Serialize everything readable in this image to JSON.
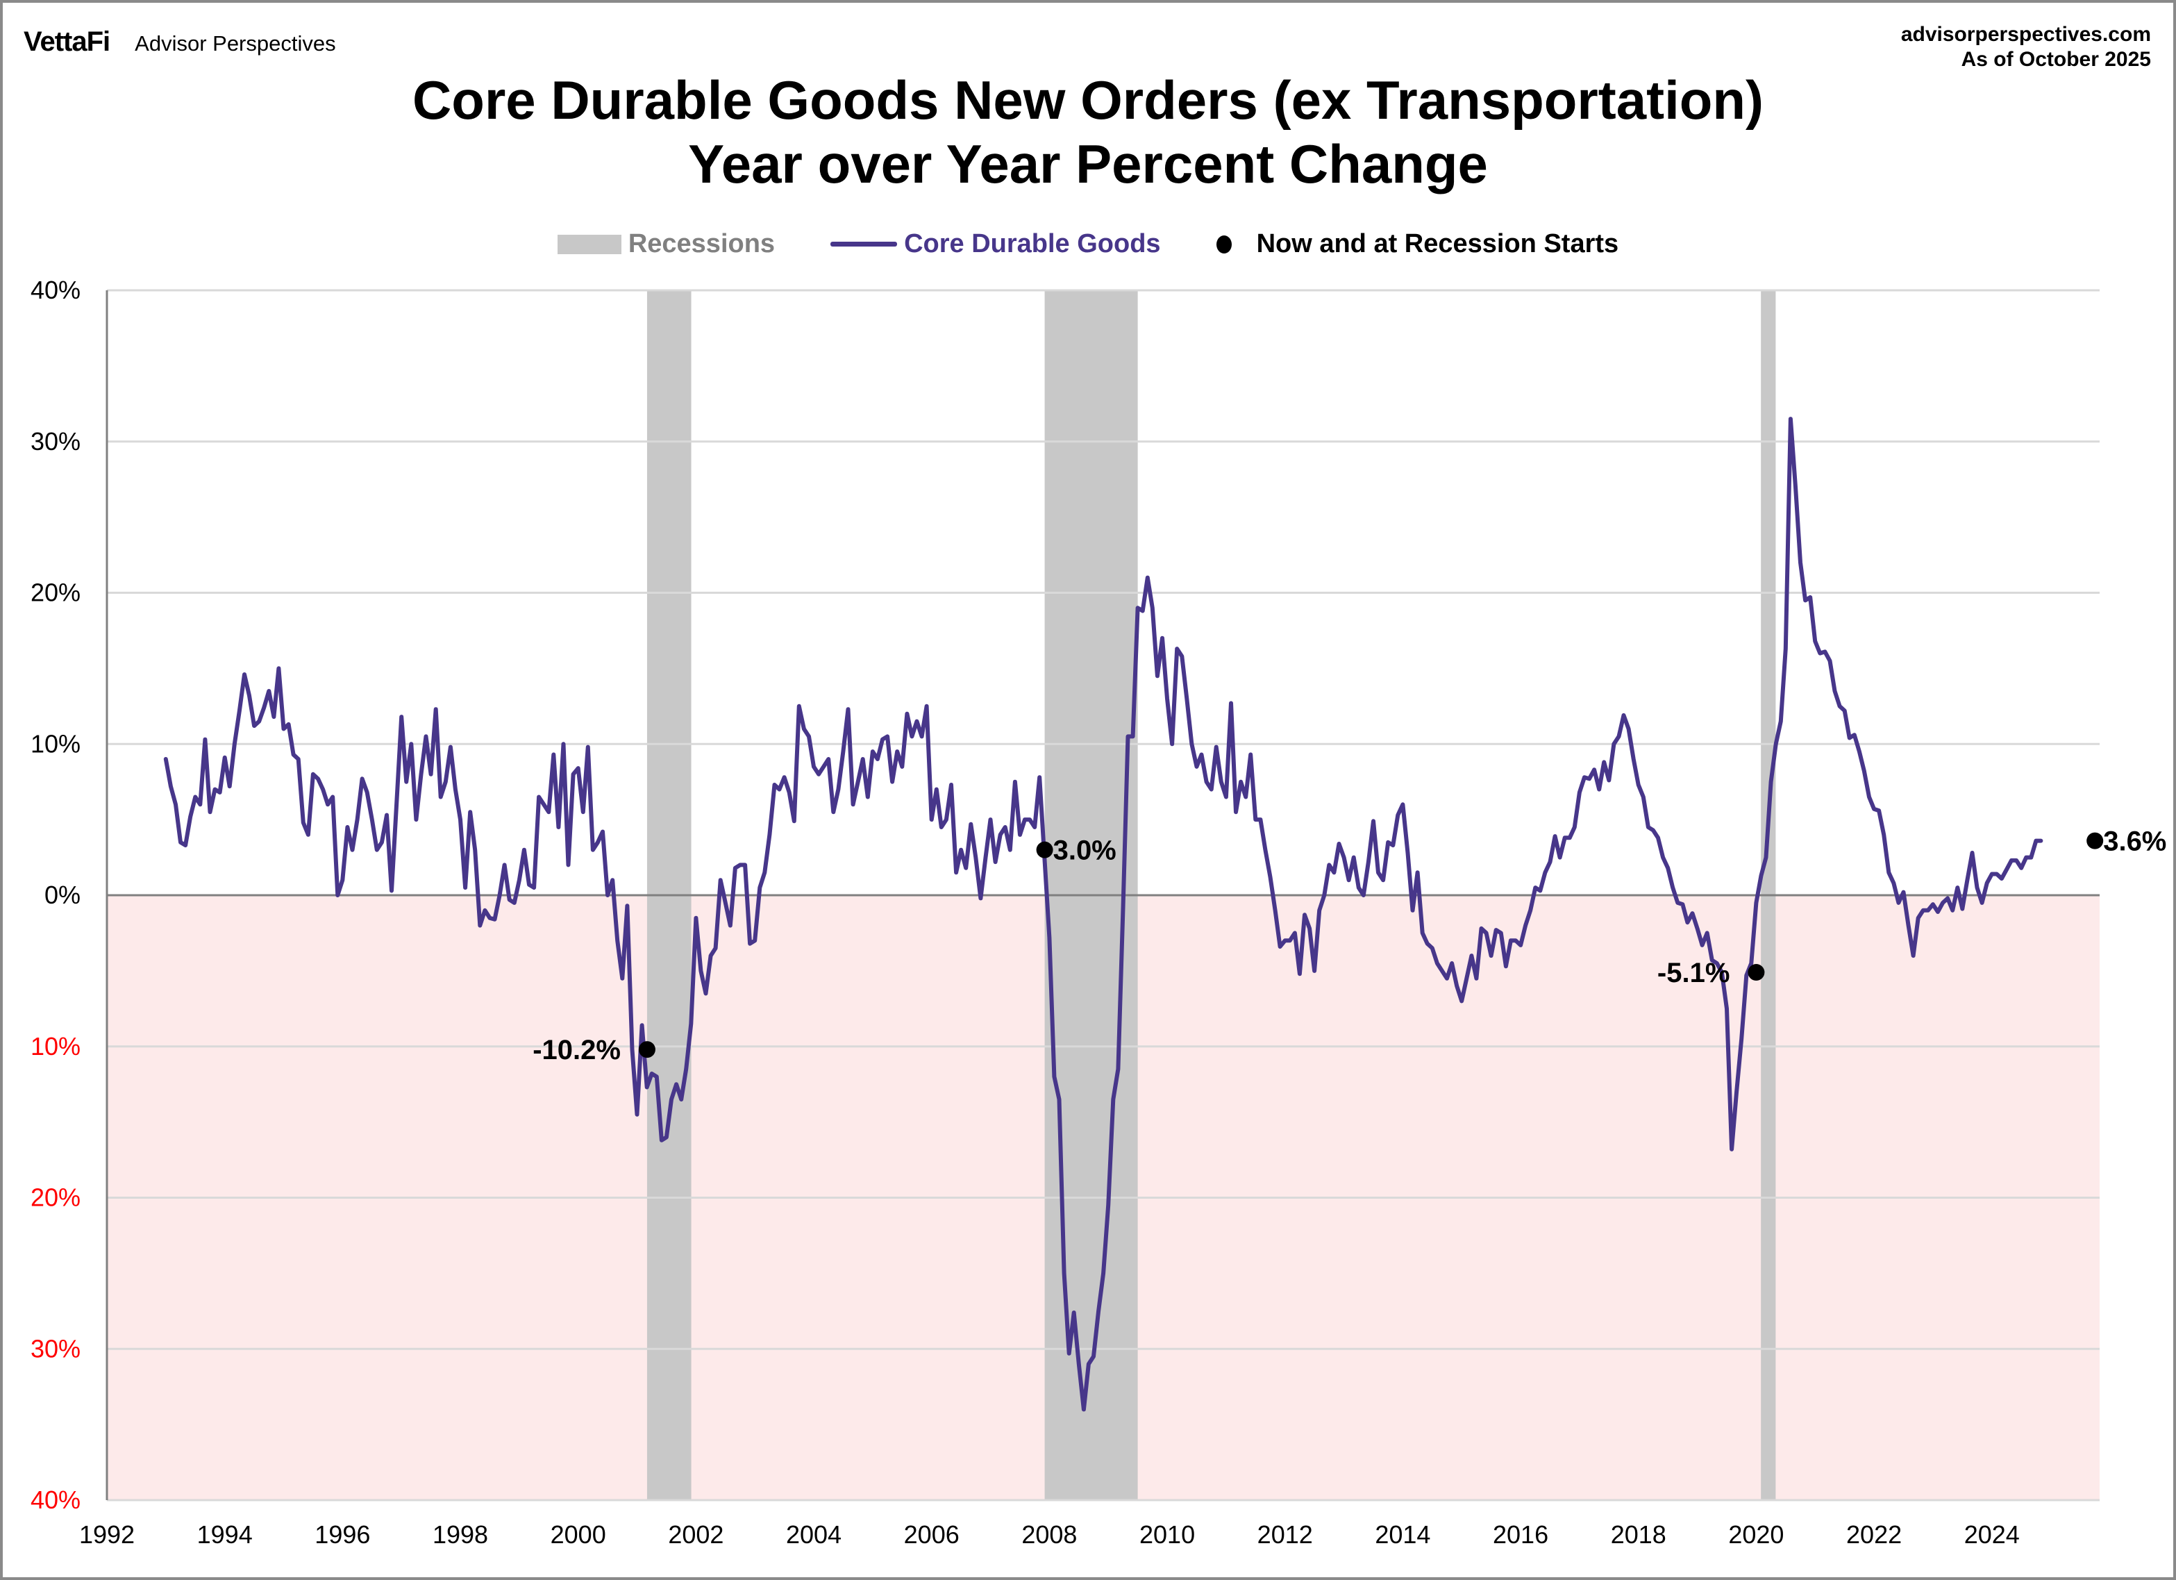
{
  "header": {
    "brand_logo": "VettaFi",
    "brand_name": "Advisor Perspectives",
    "source_site": "advisorperspectives.com",
    "as_of": "As of October 2025",
    "title_line1": "Core Durable Goods New Orders (ex Transportation)",
    "title_line2": "Year over Year Percent Change"
  },
  "legend": {
    "recessions": "Recessions",
    "series": "Core Durable Goods",
    "markers": "Now and at Recession Starts"
  },
  "colors": {
    "series": "#47368a",
    "recession": "#c8c8c8",
    "negative_fill": "#fdeaea",
    "negative_tick": "#ff0000",
    "grid": "#d9d9d9",
    "axis": "#808080",
    "legend_recessions_text": "#808080"
  },
  "chart_data": {
    "type": "line",
    "title": "Core Durable Goods New Orders (ex Transportation) Year over Year Percent Change",
    "xlabel": "",
    "ylabel": "",
    "xlim": [
      1992,
      2025.83
    ],
    "ylim": [
      -40,
      40
    ],
    "grid": true,
    "legend_position": "top-center",
    "x_tick_labels": [
      "1992",
      "1994",
      "1996",
      "1998",
      "2000",
      "2002",
      "2004",
      "2006",
      "2008",
      "2010",
      "2012",
      "2014",
      "2016",
      "2018",
      "2020",
      "2022",
      "2024"
    ],
    "y_tick_labels": [
      "40%",
      "30%",
      "20%",
      "10%",
      "0%",
      "10%",
      "20%",
      "30%",
      "40%"
    ],
    "y_tick_values": [
      40,
      30,
      20,
      10,
      0,
      -10,
      -20,
      -30,
      -40
    ],
    "recessions": [
      {
        "start": 2001.17,
        "end": 2001.92
      },
      {
        "start": 2007.92,
        "end": 2009.5
      },
      {
        "start": 2020.08,
        "end": 2020.33
      }
    ],
    "series": [
      {
        "name": "Core Durable Goods",
        "start": 1993.0,
        "step_months": 1,
        "values": [
          9.0,
          7.2,
          6.0,
          3.5,
          3.3,
          5.2,
          6.5,
          6.0,
          10.3,
          5.5,
          7.0,
          6.8,
          9.1,
          7.2,
          10.0,
          12.2,
          14.6,
          13.2,
          11.2,
          11.5,
          12.4,
          13.5,
          11.8,
          15.0,
          11.0,
          11.3,
          9.3,
          9.0,
          4.8,
          4.0,
          8.0,
          7.7,
          7.0,
          6.0,
          6.5,
          0.0,
          1.0,
          4.5,
          3.0,
          5.0,
          7.7,
          6.8,
          5.0,
          3.0,
          3.5,
          5.3,
          0.3,
          6.0,
          11.8,
          7.5,
          10.0,
          5.0,
          8.0,
          10.5,
          8.0,
          12.3,
          6.5,
          7.5,
          9.8,
          7.0,
          5.0,
          0.5,
          5.5,
          3.0,
          -2.0,
          -1.0,
          -1.5,
          -1.6,
          0.0,
          2.0,
          -0.3,
          -0.5,
          1.0,
          3.0,
          0.7,
          0.5,
          6.5,
          6.0,
          5.5,
          9.3,
          4.5,
          10.0,
          2.0,
          8.0,
          8.4,
          5.5,
          9.8,
          3.0,
          3.5,
          4.2,
          0.0,
          1.0,
          -3.0,
          -5.5,
          -0.7,
          -10.2,
          -14.5,
          -8.6,
          -12.7,
          -11.8,
          -12.0,
          -16.2,
          -16.0,
          -13.5,
          -12.5,
          -13.5,
          -11.5,
          -8.5,
          -1.5,
          -5.0,
          -6.5,
          -4.0,
          -3.5,
          1.0,
          -0.5,
          -2.0,
          1.8,
          2.0,
          2.0,
          -3.2,
          -3.0,
          0.5,
          1.5,
          4.0,
          7.3,
          7.0,
          7.8,
          6.8,
          4.9,
          12.5,
          11.0,
          10.5,
          8.5,
          8.0,
          8.5,
          9.0,
          5.5,
          7.0,
          9.5,
          12.3,
          6.0,
          7.5,
          9.0,
          6.5,
          9.5,
          9.0,
          10.3,
          10.5,
          7.5,
          9.5,
          8.5,
          12.0,
          10.5,
          11.5,
          10.5,
          12.5,
          5.0,
          7.0,
          4.5,
          5.0,
          7.3,
          1.5,
          3.0,
          1.8,
          4.7,
          2.5,
          -0.2,
          2.5,
          5.0,
          2.2,
          4.0,
          4.5,
          3.0,
          7.5,
          4.0,
          5.0,
          5.0,
          4.5,
          7.8,
          2.5,
          -2.8,
          -12.0,
          -13.5,
          -25.0,
          -30.3,
          -27.6,
          -31.0,
          -34.0,
          -31.0,
          -30.5,
          -27.5,
          -25.0,
          -20.5,
          -13.5,
          -11.5,
          -1.0,
          10.5,
          10.5,
          19.0,
          18.8,
          21.0,
          19.0,
          14.5,
          17.0,
          13.0,
          10.0,
          16.3,
          15.8,
          13.0,
          10.0,
          8.5,
          9.3,
          7.5,
          7.0,
          9.8,
          7.5,
          6.5,
          12.7,
          5.5,
          7.5,
          6.5,
          9.3,
          5.0,
          5.0,
          3.0,
          1.2,
          -1.0,
          -3.4,
          -3.0,
          -3.0,
          -2.5,
          -5.2,
          -1.3,
          -2.2,
          -5.0,
          -1.0,
          0.0,
          2.0,
          1.5,
          3.4,
          2.5,
          1.0,
          2.5,
          0.5,
          0.0,
          2.2,
          4.9,
          1.5,
          1.0,
          3.5,
          3.3,
          5.3,
          6.0,
          2.8,
          -1.0,
          1.5,
          -2.5,
          -3.2,
          -3.5,
          -4.5,
          -5.0,
          -5.5,
          -4.5,
          -6.0,
          -7.0,
          -5.5,
          -4.0,
          -5.5,
          -2.2,
          -2.5,
          -4.0,
          -2.3,
          -2.5,
          -4.7,
          -3.0,
          -3.0,
          -3.3,
          -2.0,
          -1.0,
          0.5,
          0.3,
          1.5,
          2.2,
          3.9,
          2.5,
          3.8,
          3.8,
          4.5,
          6.8,
          7.8,
          7.7,
          8.3,
          7.0,
          8.8,
          7.6,
          10.0,
          10.5,
          11.9,
          11.0,
          9.0,
          7.3,
          6.5,
          4.5,
          4.3,
          3.8,
          2.5,
          1.8,
          0.5,
          -0.5,
          -0.6,
          -1.8,
          -1.2,
          -2.2,
          -3.3,
          -2.5,
          -4.3,
          -4.5,
          -5.1,
          -7.5,
          -16.8,
          -13.0,
          -9.5,
          -5.3,
          -4.5,
          -0.5,
          1.3,
          2.5,
          7.5,
          10.0,
          11.5,
          16.3,
          31.5,
          27.0,
          22.0,
          19.5,
          19.7,
          16.8,
          16.0,
          16.1,
          15.5,
          13.5,
          12.5,
          12.2,
          10.4,
          10.6,
          9.5,
          8.2,
          6.5,
          5.7,
          5.6,
          4.0,
          1.5,
          0.8,
          -0.5,
          0.2,
          -2.0,
          -4.0,
          -1.5,
          -1.0,
          -1.0,
          -0.6,
          -1.1,
          -0.5,
          -0.2,
          -1.0,
          0.5,
          -0.9,
          1.0,
          2.8,
          0.5,
          -0.5,
          0.8,
          1.4,
          1.4,
          1.1,
          1.7,
          2.3,
          2.3,
          1.8,
          2.5,
          2.5,
          3.6,
          3.6
        ]
      }
    ],
    "markers": [
      {
        "x": 2001.17,
        "value": -10.2,
        "label": "-10.2%",
        "label_side": "left"
      },
      {
        "x": 2007.92,
        "value": 3.0,
        "label": "3.0%",
        "label_side": "right"
      },
      {
        "x": 2020.0,
        "value": -5.1,
        "label": "-5.1%",
        "label_side": "left"
      },
      {
        "x": 2025.75,
        "value": 3.6,
        "label": "3.6%",
        "label_side": "right"
      }
    ]
  }
}
